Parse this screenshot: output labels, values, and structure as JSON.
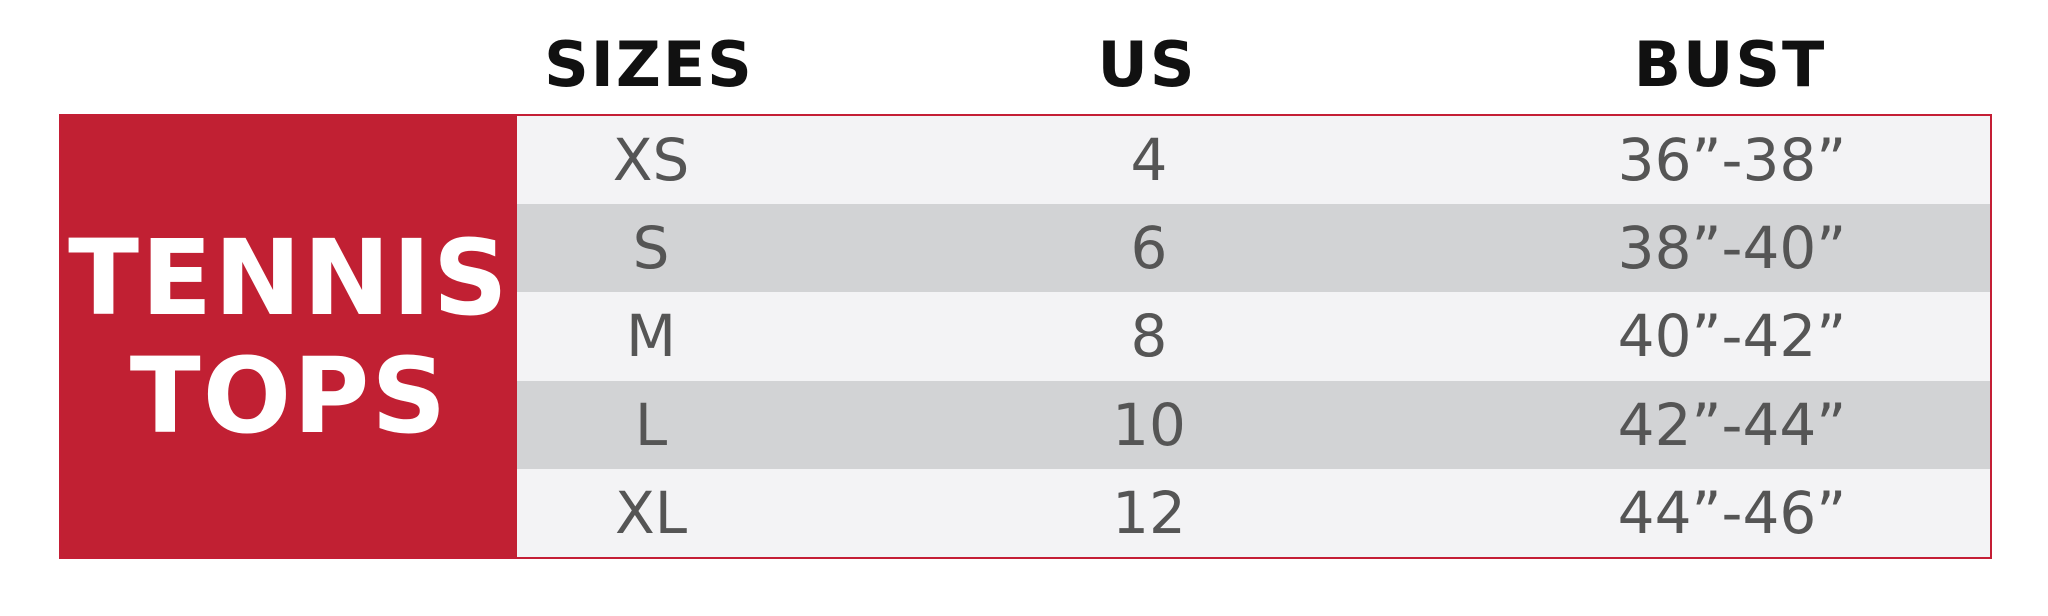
{
  "headers": {
    "sizes": "SIZES",
    "us": "US",
    "bust": "BUST"
  },
  "category": {
    "line1": "TENNIS",
    "line2": "TOPS"
  },
  "colors": {
    "accent": "#c12033",
    "row_light": "#f3f3f5",
    "row_dark": "#d2d3d5",
    "text": "#555555"
  },
  "rows": [
    {
      "size": "XS",
      "us": "4",
      "bust": "36”-38”"
    },
    {
      "size": "S",
      "us": "6",
      "bust": "38”-40”"
    },
    {
      "size": "M",
      "us": "8",
      "bust": "40”-42”"
    },
    {
      "size": "L",
      "us": "10",
      "bust": "42”-44”"
    },
    {
      "size": "XL",
      "us": "12",
      "bust": "44”-46”"
    }
  ]
}
